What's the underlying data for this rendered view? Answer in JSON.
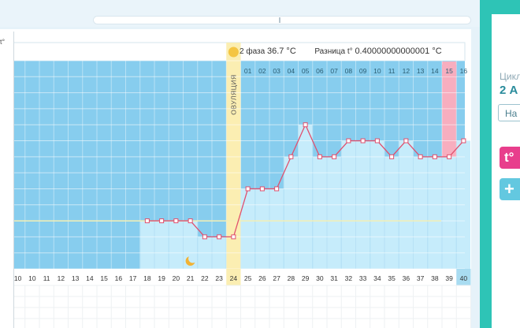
{
  "scrollbar": {},
  "y_unit_label": "t°",
  "phase_info": {
    "phase_label": "2 фаза",
    "phase_value": "36.7 °C",
    "diff_label": "Разница t°",
    "diff_value": "0.40000000000001 °C"
  },
  "ovulation_label": "ОВУЛЯЦИЯ",
  "sidebar": {
    "cycle_label": "Цикл",
    "cycle_day": "2 А",
    "nav_button": "На",
    "temp_button": "t°",
    "add_button": "+"
  },
  "colors": {
    "background": "#87cdee",
    "bar": "#c6ecfb",
    "line": "#e0506e",
    "ovulation": "#fbeeb2",
    "period_day": "#f7aebf",
    "selected_day": "#a9dcf1",
    "sidebar": "#2ec4b6"
  },
  "chart_data": {
    "type": "line",
    "title": "",
    "xlabel": "",
    "ylabel": "t°",
    "ylim": [
      36.0,
      37.3
    ],
    "yticks": [
      "36.0",
      "36.1",
      "36.2",
      "36.3",
      "36.4",
      "36.5",
      "36.6",
      "36.7",
      "36.8",
      "36.9",
      "37.0",
      "37.1",
      "37.2",
      "37.3"
    ],
    "xticks": [
      "10",
      "10",
      "11",
      "12",
      "13",
      "14",
      "15",
      "16",
      "17",
      "18",
      "19",
      "20",
      "21",
      "22",
      "23",
      "24",
      "25",
      "26",
      "27",
      "28",
      "29",
      "30",
      "31",
      "32",
      "33",
      "34",
      "35",
      "36",
      "37",
      "38",
      "39",
      "40"
    ],
    "x": [
      18,
      19,
      20,
      21,
      22,
      23,
      24,
      25,
      26,
      27,
      28,
      29,
      30,
      31,
      32,
      33,
      34,
      35,
      36,
      37,
      38,
      39,
      40
    ],
    "values": [
      36.3,
      36.3,
      36.3,
      36.3,
      36.2,
      36.2,
      36.2,
      36.5,
      36.5,
      36.5,
      36.7,
      36.9,
      36.7,
      36.7,
      36.8,
      36.8,
      36.8,
      36.7,
      36.8,
      36.7,
      36.7,
      36.7,
      36.8
    ],
    "phase2_days": [
      "01",
      "02",
      "03",
      "04",
      "05",
      "06",
      "07",
      "08",
      "09",
      "10",
      "11",
      "12",
      "13",
      "14",
      "15",
      "16"
    ],
    "ovulation_day": 24,
    "highlighted_day": 39,
    "selected_day": 40,
    "moon_day": 21,
    "coverline": 36.3,
    "grid": true
  }
}
